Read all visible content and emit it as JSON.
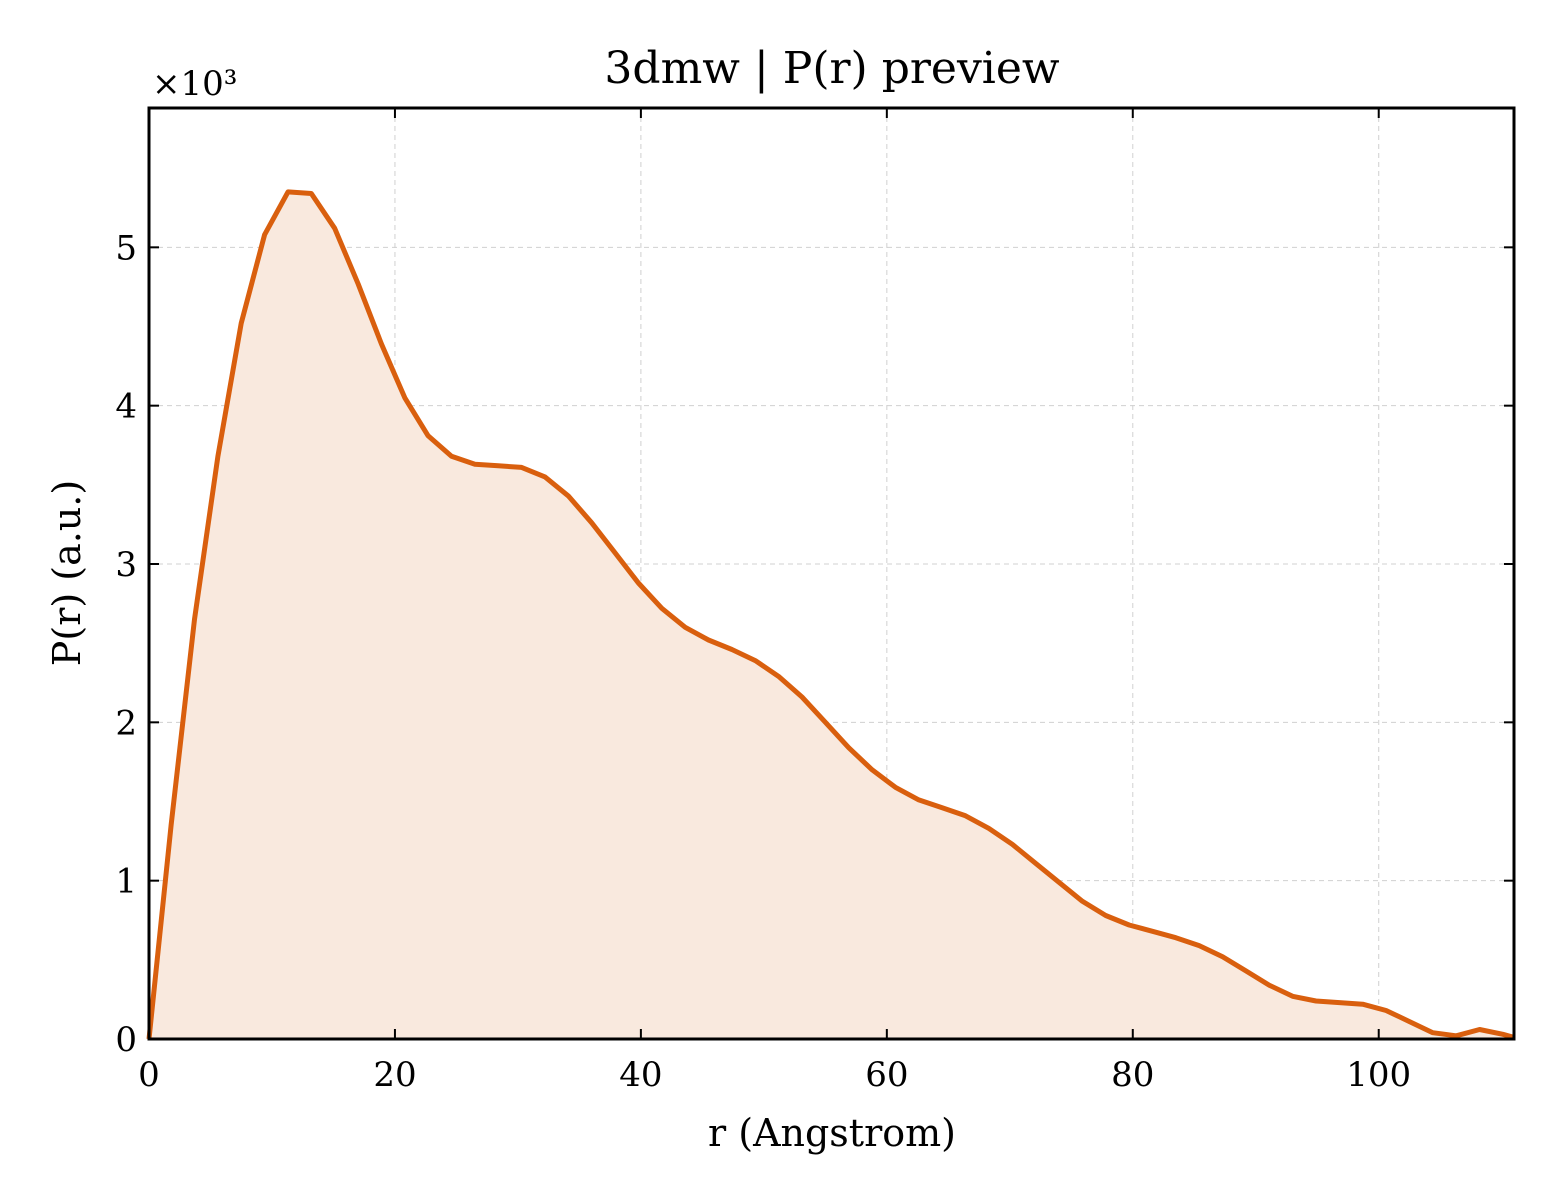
{
  "chart_data": {
    "type": "area",
    "title": "3dmw | P(r) preview",
    "xlabel": "r (Angstrom)",
    "ylabel": "P(r) (a.u.)",
    "y_scale_label": "×10³",
    "y_scale_factor": 1000,
    "xlim": [
      0,
      111
    ],
    "ylim": [
      0,
      5.88
    ],
    "xticks": [
      0,
      20,
      40,
      60,
      80,
      100
    ],
    "xtick_labels": [
      "0",
      "20",
      "40",
      "60",
      "80",
      "100"
    ],
    "yticks": [
      0,
      1,
      2,
      3,
      4,
      5
    ],
    "ytick_labels": [
      "0",
      "1",
      "2",
      "3",
      "4",
      "5"
    ],
    "grid": true,
    "colors": {
      "line": "#d95f0e",
      "fill": "#f9e9de"
    },
    "series": [
      {
        "x": [
          0,
          1.8,
          3.7,
          5.6,
          7.5,
          9.4,
          11.3,
          13.2,
          15.1,
          17.0,
          18.9,
          20.8,
          22.7,
          24.6,
          26.5,
          28.4,
          30.3,
          32.2,
          34.1,
          36.0,
          37.9,
          39.8,
          41.7,
          43.6,
          45.5,
          47.4,
          49.3,
          51.2,
          53.1,
          55.0,
          56.9,
          58.8,
          60.7,
          62.6,
          64.5,
          66.4,
          68.3,
          70.2,
          72.1,
          74.0,
          75.9,
          77.8,
          79.7,
          81.6,
          83.5,
          85.4,
          87.3,
          89.2,
          91.1,
          93.0,
          94.9,
          96.8,
          98.7,
          100.6,
          102.5,
          104.4,
          106.3,
          108.2,
          110.1,
          111
        ],
        "values": [
          0,
          1.35,
          2.65,
          3.68,
          4.52,
          5.08,
          5.35,
          5.34,
          5.12,
          4.77,
          4.39,
          4.05,
          3.81,
          3.68,
          3.63,
          3.62,
          3.61,
          3.55,
          3.43,
          3.26,
          3.07,
          2.88,
          2.72,
          2.6,
          2.52,
          2.46,
          2.39,
          2.29,
          2.16,
          2.0,
          1.84,
          1.7,
          1.59,
          1.51,
          1.46,
          1.41,
          1.33,
          1.23,
          1.11,
          0.99,
          0.87,
          0.78,
          0.72,
          0.68,
          0.64,
          0.59,
          0.52,
          0.43,
          0.34,
          0.27,
          0.24,
          0.23,
          0.22,
          0.18,
          0.11,
          0.04,
          0.02,
          0.06,
          0.03,
          0.01
        ]
      }
    ]
  }
}
